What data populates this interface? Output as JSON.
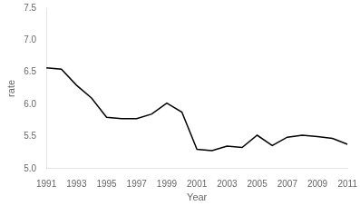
{
  "chart_data": {
    "type": "line",
    "x": [
      1991,
      1992,
      1993,
      1994,
      1995,
      1996,
      1997,
      1998,
      1999,
      2000,
      2001,
      2002,
      2003,
      2004,
      2005,
      2006,
      2007,
      2008,
      2009,
      2010,
      2011
    ],
    "values": [
      6.57,
      6.55,
      6.3,
      6.1,
      5.8,
      5.78,
      5.78,
      5.85,
      6.02,
      5.88,
      5.3,
      5.28,
      5.35,
      5.33,
      5.52,
      5.36,
      5.49,
      5.52,
      5.5,
      5.47,
      5.38
    ],
    "color": "#000000",
    "xlabel": "Year",
    "ylabel": "rate",
    "xlim": [
      1991,
      2011
    ],
    "ylim": [
      5.0,
      7.5
    ],
    "xticks": [
      1991,
      1993,
      1995,
      1997,
      1999,
      2001,
      2003,
      2005,
      2007,
      2009,
      2011
    ],
    "yticks": [
      {
        "value": 5.0,
        "label": "5.0"
      },
      5.5,
      {
        "value": 6.0,
        "label": "6.0"
      },
      6.5,
      {
        "value": 7.0,
        "label": "7.0"
      },
      7.5
    ],
    "grid": false
  }
}
